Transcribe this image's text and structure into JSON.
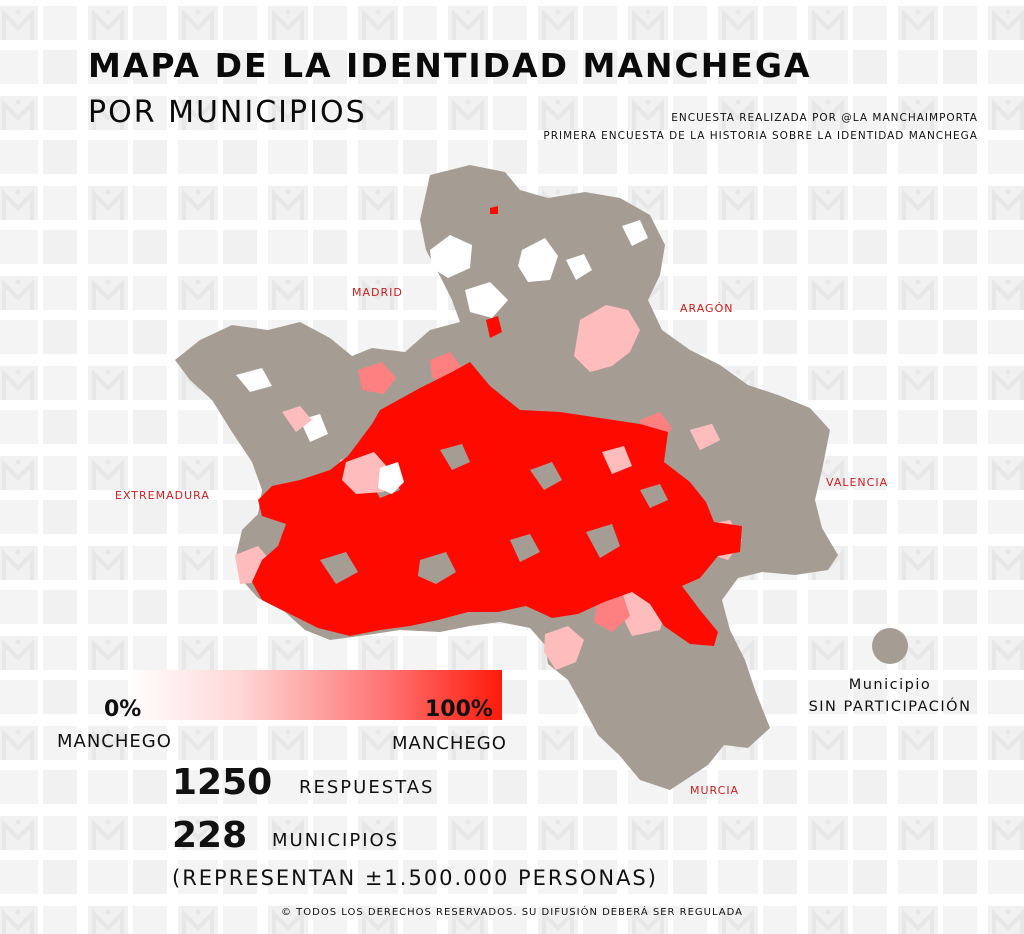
{
  "header": {
    "title": "MAPA DE LA IDENTIDAD MANCHEGA",
    "subtitle": "POR MUNICIPIOS",
    "credit_line1": "ENCUESTA REALIZADA POR @LA MANCHAIMPORTA",
    "credit_line2": "PRIMERA ENCUESTA DE LA HISTORIA SOBRE LA IDENTIDAD MANCHEGA"
  },
  "map": {
    "neighbors": {
      "madrid": "MADRID",
      "aragon": "ARAGÓN",
      "extremadura": "EXTREMADURA",
      "valencia": "VALENCIA",
      "murcia": "MURCIA"
    },
    "colors": {
      "no_participation": "#a59d93",
      "scale_low": "#ffffff",
      "scale_high": "#ff1a0a",
      "region_label": "#cc1d1d",
      "watermark": "#efefef"
    }
  },
  "legend": {
    "low_percent": "0%",
    "high_percent": "100%",
    "low_label": "MANCHEGO",
    "high_label": "MANCHEGO",
    "no_participation_line1": "Municipio",
    "no_participation_line2": "SIN PARTICIPACIÓN"
  },
  "stats": {
    "responses_number": "1250",
    "responses_label": "RESPUESTAS",
    "municipalities_number": "228",
    "municipalities_label": "MUNICIPIOS",
    "represent": "(REPRESENTAN ±1.500.000 PERSONAS)"
  },
  "footer": {
    "copyright": "© TODOS LOS DERECHOS RESERVADOS. SU DIFUSIÓN DEBERÁ SER REGULADA"
  }
}
